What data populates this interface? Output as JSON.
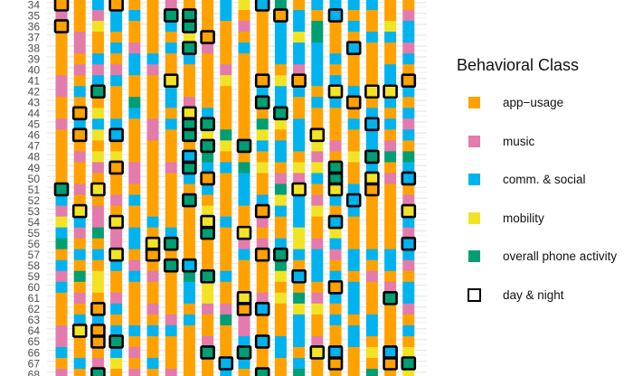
{
  "chart_data": {
    "type": "heatmap",
    "title": "",
    "xlabel": "",
    "ylabel": "",
    "row_labels": [
      "34",
      "35",
      "36",
      "37",
      "38",
      "39",
      "40",
      "41",
      "42",
      "43",
      "44",
      "45",
      "46",
      "47",
      "48",
      "49",
      "50",
      "51",
      "52",
      "53",
      "54",
      "55",
      "56",
      "57",
      "58",
      "59",
      "60",
      "61",
      "62",
      "63",
      "64",
      "65",
      "66",
      "67",
      "68"
    ],
    "encoding": "Each column string lists one class code per row (rows 34 to 68). a=app-usage, m=music, c=comm. & social, y=mobility, g=overall phone activity. Uppercase = cell also marked day & night (boxed).",
    "columns": [
      "AmAaaaammaamaaaaaGcmycgacmcaaammcam",
      "aaammamacaAcAamaamaYcmacagamacYaaca",
      "cmyaacmcGaycyaymaYammgacayyaAcAAamG",
      "AccacamcaaacCayAaamaYmmYcaamcacGcya",
      "acaamccaagcaaaammacaaccamcaaaacamam",
      "aaaaacmaaaammaaaaaaacaYAamaamacaaca",
      "mGcacaaYccacaaamaaaaacGaGaaaamcaaam",
      "aGGyGcaaamYGGaCGcaGaaaaaCgccacaaaaa",
      "aaaAmaaaaacGyGgcAcayYGaaaGyymaamGaa",
      "ccaaaamyaaaagyacaaaacaaaacaamgaaaCc",
      "yamacaaaaaaaaGagcccaaYmcaaaYAmmcGca",
      "CaaaaaaAcGagycayaacAmamAaaamCaaCaaG",
      "gAccccayccGyaccamgycaacGgyayaaaccaa",
      "accyccmAcaacccaymYcccyycaCagycccacg",
      "caggccccacaaYymycamyaamcccamyaamYaa",
      "cCaaacacYcaaamaGGYcaCycmacAcacaaCAa",
      "cacaCaaacAacaayaacCcaaaccacccaccaaa",
      "caacaaaaYacCccGcYAaaaaacamaaaccayag",
      "aaycaaccYcacamgamaaaaaaccamGaaaaCAa",
      "amccmcaAcacmcagcCamYcmCcmaccmacayGy"
    ],
    "legend": {
      "title": "Behavioral Class",
      "placement": "right",
      "items": [
        {
          "code": "a",
          "label": "app−usage",
          "color": "#FFA200"
        },
        {
          "code": "m",
          "label": "music",
          "color": "#E37BAB"
        },
        {
          "code": "c",
          "label": "comm. & social",
          "color": "#00B3EE"
        },
        {
          "code": "y",
          "label": "mobility",
          "color": "#F2E425"
        },
        {
          "code": "g",
          "label": "overall phone activity",
          "color": "#009E73"
        },
        {
          "code": "box",
          "label": "day & night",
          "color": "#000000"
        }
      ]
    }
  }
}
